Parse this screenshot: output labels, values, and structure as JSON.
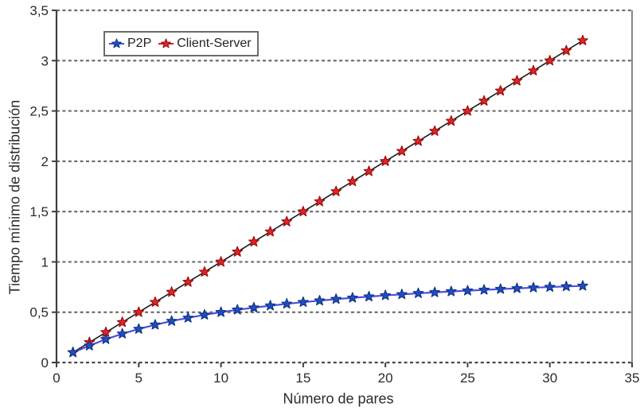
{
  "chart_data": {
    "type": "line",
    "title": "",
    "xlabel": "Número de pares",
    "ylabel": "Tiempo mínimo de distribución",
    "xlim": [
      0,
      35
    ],
    "ylim": [
      0,
      3.5
    ],
    "grid": "horizontal-dashed",
    "legend_position": "top-left-inside",
    "x": [
      1,
      2,
      3,
      4,
      5,
      6,
      7,
      8,
      9,
      10,
      11,
      12,
      13,
      14,
      15,
      16,
      17,
      18,
      19,
      20,
      21,
      22,
      23,
      24,
      25,
      26,
      27,
      28,
      29,
      30,
      31,
      32
    ],
    "series": [
      {
        "name": "P2P",
        "values": [
          0.1,
          0.167,
          0.231,
          0.286,
          0.333,
          0.375,
          0.412,
          0.444,
          0.474,
          0.5,
          0.524,
          0.545,
          0.565,
          0.583,
          0.6,
          0.615,
          0.63,
          0.643,
          0.655,
          0.667,
          0.677,
          0.688,
          0.697,
          0.706,
          0.714,
          0.722,
          0.73,
          0.737,
          0.744,
          0.75,
          0.756,
          0.762
        ],
        "line_color": "#4d4de0",
        "line_width": 2.2,
        "marker": "star",
        "marker_fill": "#1f4ec4",
        "marker_stroke": "#143684",
        "legend_line_color": "#4d4de0"
      },
      {
        "name": "Client-Server",
        "values": [
          0.1,
          0.2,
          0.3,
          0.4,
          0.5,
          0.6,
          0.7,
          0.8,
          0.9,
          1.0,
          1.1,
          1.2,
          1.3,
          1.4,
          1.5,
          1.6,
          1.7,
          1.8,
          1.9,
          2.0,
          2.1,
          2.2,
          2.3,
          2.4,
          2.5,
          2.6,
          2.7,
          2.8,
          2.9,
          3.0,
          3.1,
          3.2
        ],
        "line_color": "#1a1a1a",
        "line_width": 1.6,
        "marker": "star",
        "marker_fill": "#e32424",
        "marker_stroke": "#990f0f",
        "legend_line_color": "#cc2222"
      }
    ],
    "xtick_values": [
      0,
      5,
      10,
      15,
      20,
      25,
      30,
      35
    ],
    "xtick_labels": [
      "0",
      "5",
      "10",
      "15",
      "20",
      "25",
      "30",
      "35"
    ],
    "ytick_values": [
      0,
      0.5,
      1,
      1.5,
      2,
      2.5,
      3,
      3.5
    ],
    "ytick_labels": [
      "0",
      "0,5",
      "1",
      "1,5",
      "2",
      "2,5",
      "3",
      "3,5"
    ],
    "style": {
      "background": "#ffffff",
      "grid_color": "#6f6f6f",
      "axis_color": "#3f3f3f",
      "bottom_axis_color": "#4a4a4a",
      "right_border_color": "#7a7a7a",
      "text_color": "#2b2b2b"
    }
  }
}
